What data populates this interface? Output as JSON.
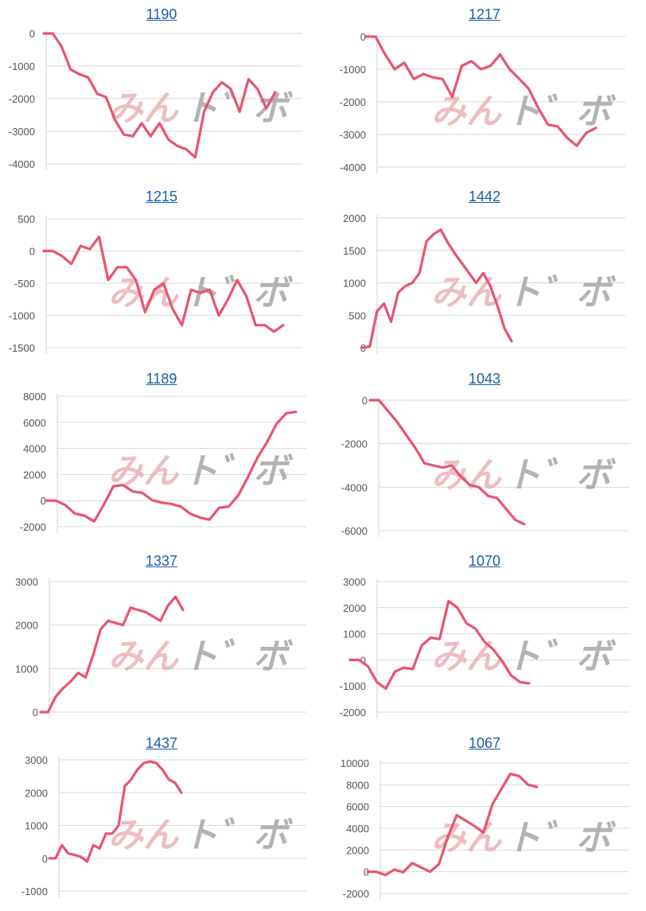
{
  "line_color": "#e8546f",
  "title_color": "#1a5fa8",
  "watermark": {
    "part1": "みん",
    "part2": "ト゛ボ"
  },
  "chart_data": [
    {
      "type": "line",
      "title": "1190",
      "ylim": [
        -4000,
        0
      ],
      "yticks": [
        0,
        -1000,
        -2000,
        -3000,
        -4000
      ],
      "values": [
        0,
        0,
        -400,
        -1100,
        -1250,
        -1350,
        -1850,
        -1950,
        -2650,
        -3100,
        -3150,
        -2750,
        -3150,
        -2750,
        -3250,
        -3450,
        -3550,
        -3800,
        -2400,
        -1800,
        -1500,
        -1700,
        -2400,
        -1400,
        -1700,
        -2300,
        -1800
      ]
    },
    {
      "type": "line",
      "title": "1217",
      "ylim": [
        -4000,
        0
      ],
      "yticks": [
        0,
        -1000,
        -2000,
        -3000,
        -4000
      ],
      "values": [
        0,
        0,
        -550,
        -1000,
        -800,
        -1300,
        -1150,
        -1250,
        -1300,
        -1850,
        -900,
        -750,
        -1000,
        -900,
        -550,
        -1000,
        -1300,
        -1600,
        -2200,
        -2700,
        -2750,
        -3100,
        -3350,
        -2950,
        -2800
      ]
    },
    {
      "type": "line",
      "title": "1215",
      "ylim": [
        -1500,
        500
      ],
      "yticks": [
        500,
        0,
        -500,
        -1000,
        -1500
      ],
      "values": [
        0,
        0,
        -80,
        -200,
        80,
        30,
        220,
        -450,
        -250,
        -250,
        -450,
        -950,
        -600,
        -500,
        -900,
        -1150,
        -600,
        -650,
        -600,
        -1000,
        -750,
        -450,
        -700,
        -1150,
        -1150,
        -1250,
        -1150
      ]
    },
    {
      "type": "line",
      "title": "1442",
      "ylim": [
        0,
        2000
      ],
      "yticks": [
        2000,
        1500,
        1000,
        500,
        0
      ],
      "values": [
        0,
        20,
        560,
        680,
        400,
        850,
        950,
        1000,
        1150,
        1640,
        1750,
        1820,
        1620,
        1450,
        1300,
        1150,
        1000,
        1150,
        950,
        650,
        300,
        100
      ]
    },
    {
      "type": "line",
      "title": "1189",
      "ylim": [
        -2000,
        8000
      ],
      "yticks": [
        8000,
        6000,
        4000,
        2000,
        0,
        -2000
      ],
      "values": [
        0,
        0,
        -350,
        -1000,
        -1150,
        -1600,
        -300,
        1100,
        1200,
        700,
        600,
        50,
        -150,
        -250,
        -450,
        -1000,
        -1300,
        -1450,
        -550,
        -450,
        400,
        1800,
        3300,
        4500,
        5900,
        6700,
        6800
      ]
    },
    {
      "type": "line",
      "title": "1043",
      "ylim": [
        -6000,
        0
      ],
      "yticks": [
        0,
        -2000,
        -4000,
        -6000
      ],
      "values": [
        0,
        0,
        -500,
        -1000,
        -1600,
        -2200,
        -2900,
        -3000,
        -3100,
        -3000,
        -3500,
        -3900,
        -4000,
        -4400,
        -4500,
        -5000,
        -5500,
        -5700
      ]
    },
    {
      "type": "line",
      "title": "1337",
      "ylim": [
        0,
        3000
      ],
      "yticks": [
        3000,
        2000,
        1000,
        0
      ],
      "values": [
        0,
        0,
        350,
        550,
        700,
        900,
        800,
        1300,
        1900,
        2100,
        2050,
        2000,
        2400,
        2350,
        2300,
        2200,
        2100,
        2450,
        2650,
        2350
      ]
    },
    {
      "type": "line",
      "title": "1070",
      "ylim": [
        -2000,
        3000
      ],
      "yticks": [
        3000,
        2000,
        1000,
        0,
        -1000,
        -2000
      ],
      "values": [
        0,
        0,
        -250,
        -850,
        -1100,
        -450,
        -300,
        -350,
        550,
        850,
        800,
        2250,
        2000,
        1400,
        1200,
        700,
        400,
        -50,
        -600,
        -850,
        -900
      ]
    },
    {
      "type": "line",
      "title": "1437",
      "ylim": [
        -1000,
        3000
      ],
      "yticks": [
        3000,
        2000,
        1000,
        0,
        -1000
      ],
      "values": [
        0,
        0,
        400,
        150,
        100,
        50,
        -100,
        400,
        300,
        750,
        750,
        1000,
        2200,
        2400,
        2700,
        2900,
        2950,
        2900,
        2700,
        2400,
        2300,
        2000
      ]
    },
    {
      "type": "line",
      "title": "1067",
      "ylim": [
        -2000,
        10000
      ],
      "yticks": [
        10000,
        8000,
        6000,
        4000,
        2000,
        0,
        -2000
      ],
      "values": [
        0,
        0,
        -300,
        200,
        -50,
        800,
        400,
        0,
        700,
        3200,
        5200,
        4700,
        4200,
        3600,
        6200,
        7600,
        9000,
        8800,
        8000,
        7800
      ]
    }
  ]
}
